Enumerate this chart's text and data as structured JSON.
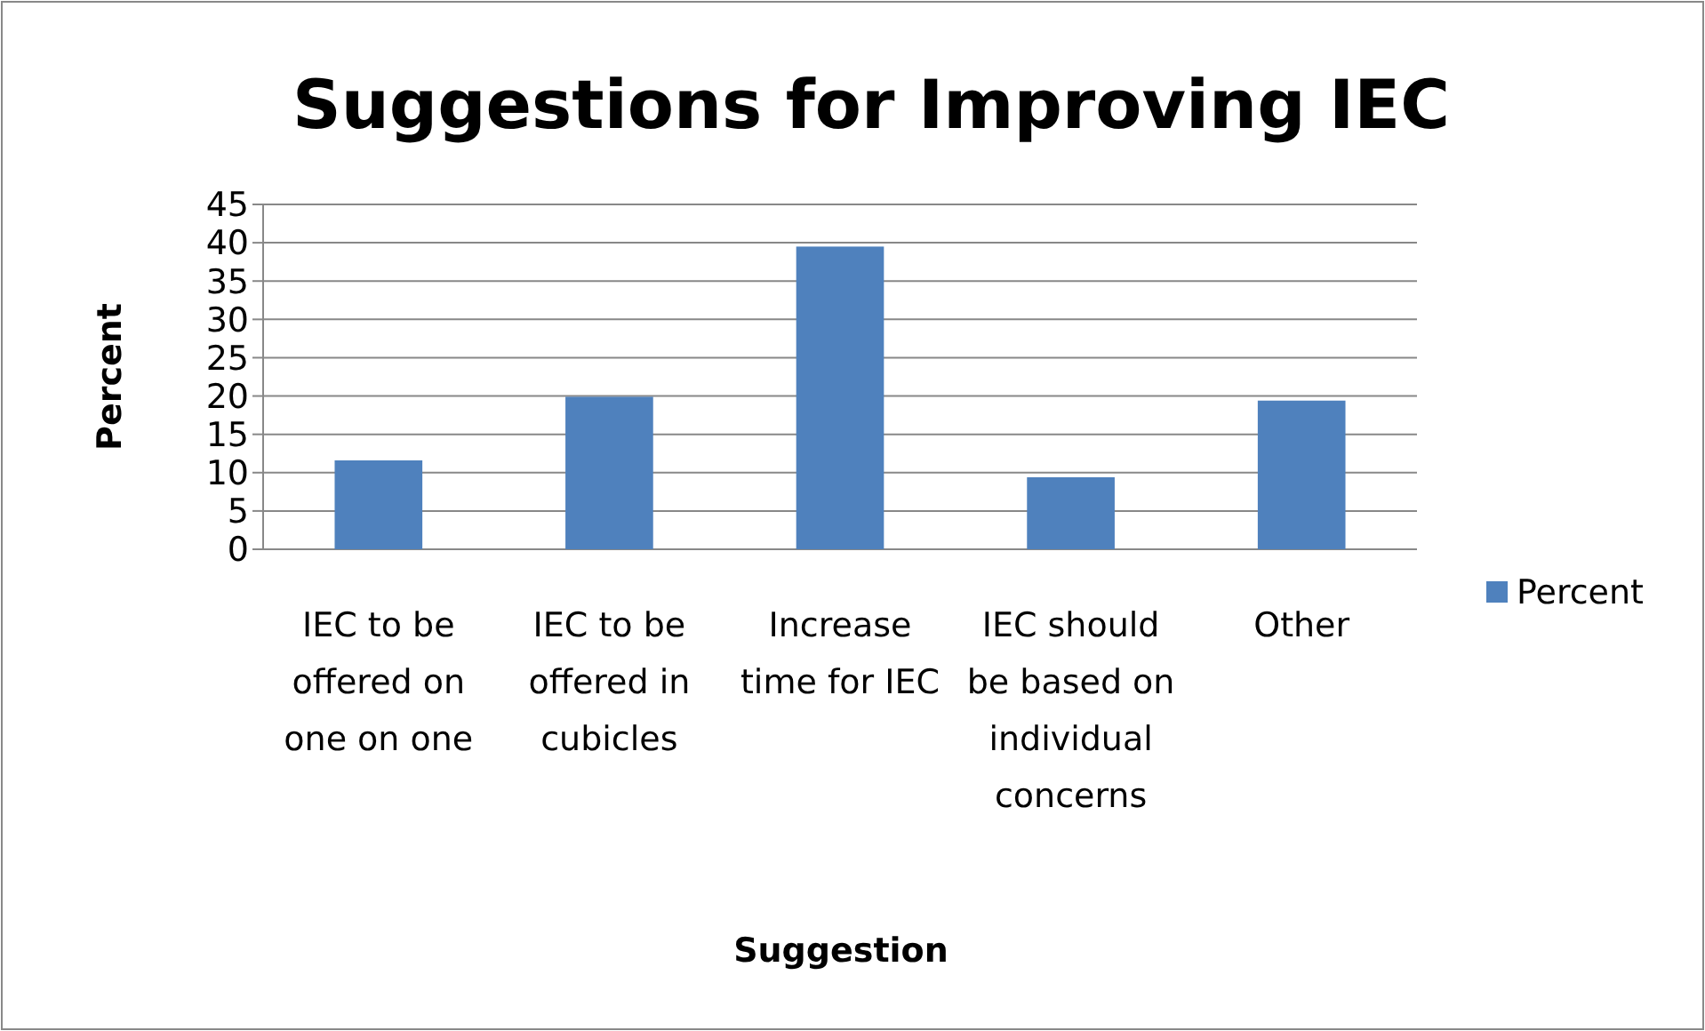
{
  "chart_data": {
    "type": "bar",
    "title": "Suggestions for Improving IEC",
    "xlabel": "Suggestion",
    "ylabel": "Percent",
    "categories": [
      "IEC to be offered on one on one",
      "IEC to be offered in cubicles",
      "Increase time for IEC",
      "IEC should be based on individual concerns",
      "Other"
    ],
    "series": [
      {
        "name": "Percent",
        "color": "#4f81bd",
        "values": [
          11.6,
          19.9,
          39.5,
          9.4,
          19.4
        ]
      }
    ],
    "ylim": [
      0,
      45
    ],
    "yticks": [
      0,
      5,
      10,
      15,
      20,
      25,
      30,
      35,
      40,
      45
    ],
    "grid": "y",
    "legend": "right"
  }
}
